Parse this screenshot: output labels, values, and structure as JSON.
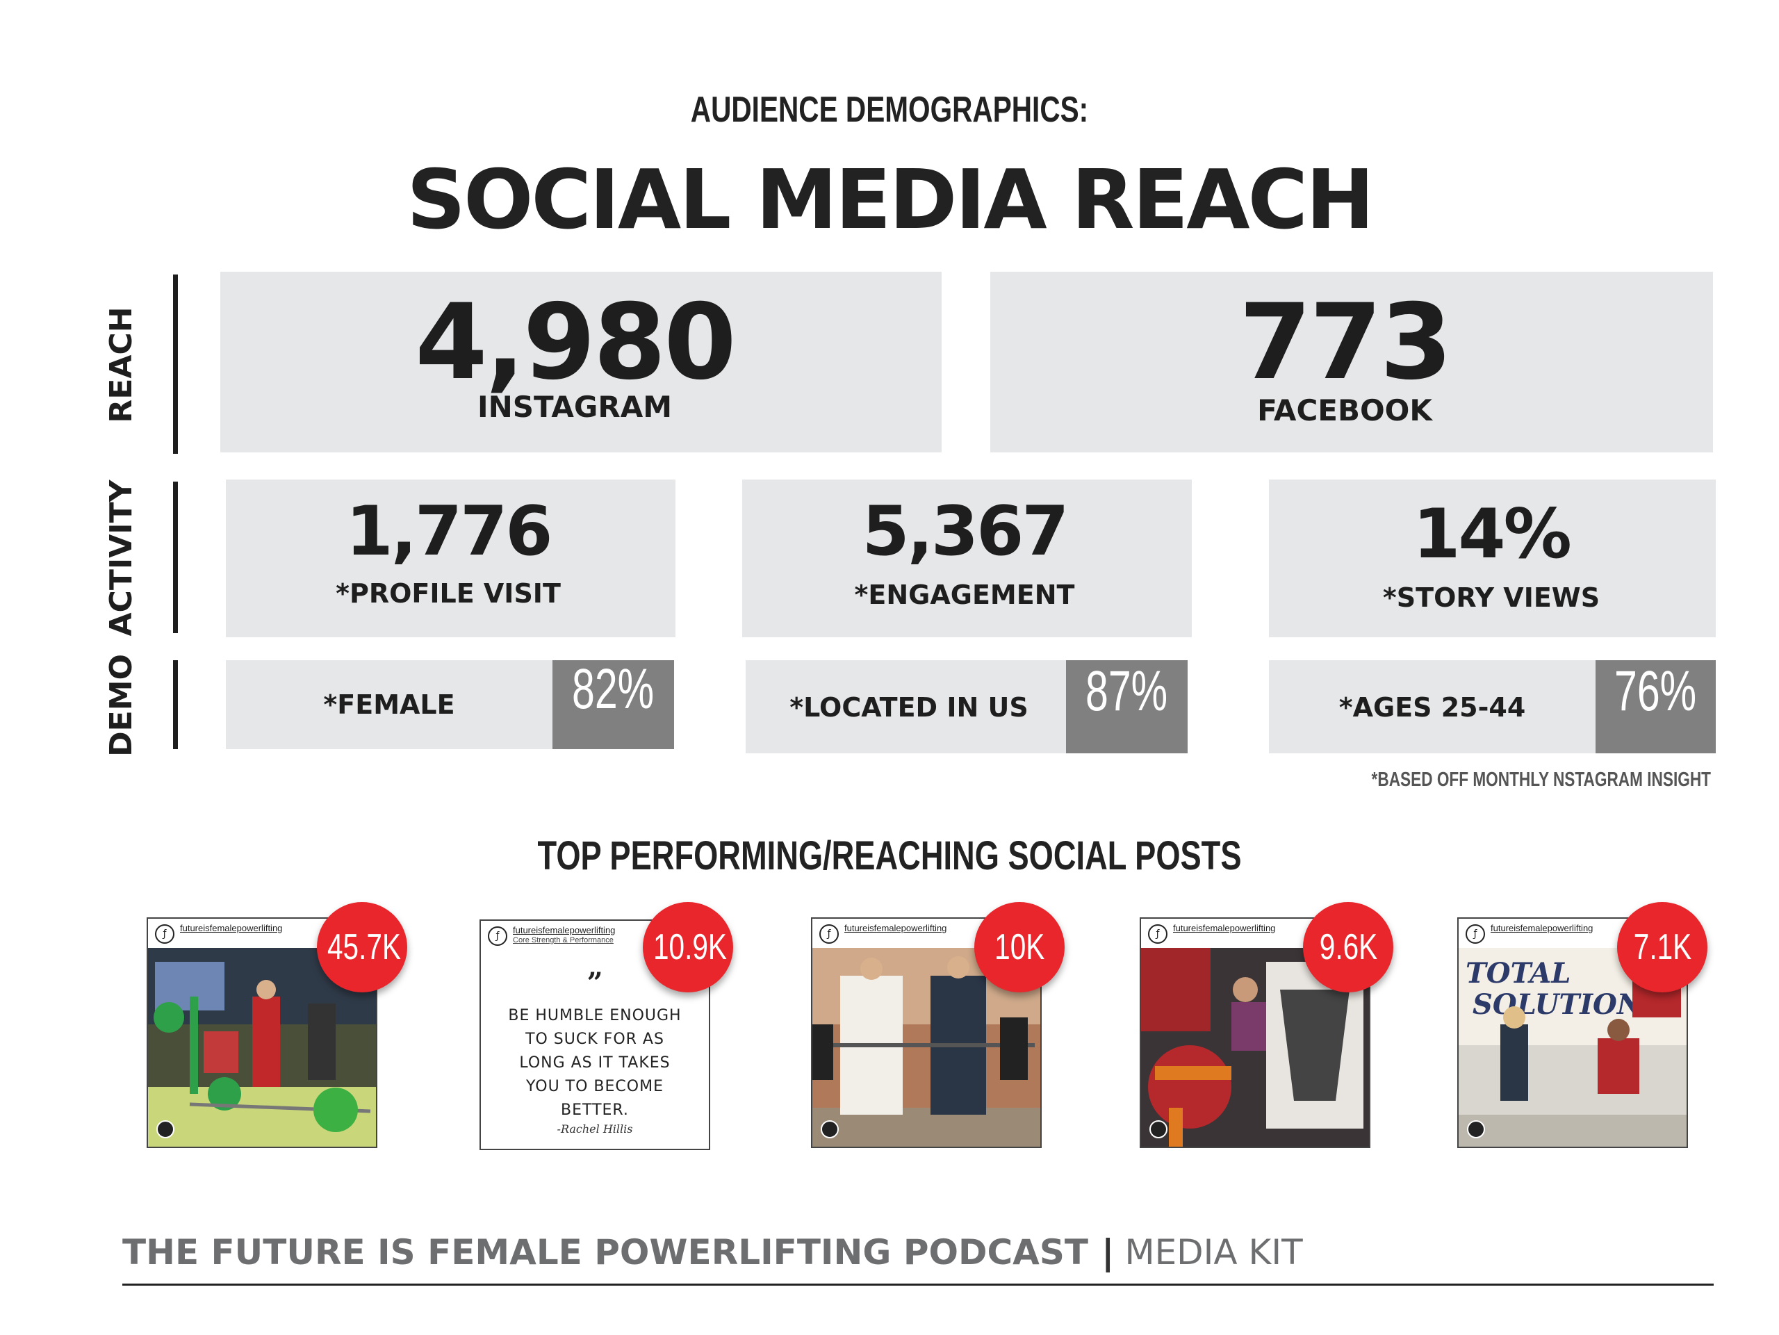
{
  "header": {
    "eyebrow": "AUDIENCE DEMOGRAPHICS:",
    "title": "SOCIAL MEDIA REACH"
  },
  "sections": {
    "reach_label": "REACH",
    "activity_label": "ACTIVITY",
    "demo_label": "DEMO"
  },
  "reach": [
    {
      "value": "4,980",
      "label": "INSTAGRAM"
    },
    {
      "value": "773",
      "label": "FACEBOOK"
    }
  ],
  "activity": [
    {
      "value": "1,776",
      "label": "*PROFILE VISIT"
    },
    {
      "value": "5,367",
      "label": "*ENGAGEMENT"
    },
    {
      "value": "14%",
      "label": "*STORY VIEWS"
    }
  ],
  "demo": [
    {
      "label": "*FEMALE",
      "percent": "82%"
    },
    {
      "label": "*LOCATED IN US",
      "percent": "87%"
    },
    {
      "label": "*AGES 25-44",
      "percent": "76%"
    }
  ],
  "footnote": "*BASED OFF MONTHLY NSTAGRAM INSIGHT",
  "posts_section": {
    "title": "TOP PERFORMING/REACHING SOCIAL POSTS",
    "posts": [
      {
        "handle": "futureisfemalepowerlifting",
        "subtitle": "",
        "count": "45.7K"
      },
      {
        "handle": "futureisfemalepowerlifting",
        "subtitle": "Core Strength & Performance",
        "count": "10.9K",
        "quote_mark": "”",
        "quote": "BE HUMBLE ENOUGH TO SUCK FOR AS LONG AS IT TAKES YOU TO BECOME BETTER.",
        "signature": "-Rachel Hillis"
      },
      {
        "handle": "futureisfemalepowerlifting",
        "subtitle": "",
        "count": "10K"
      },
      {
        "handle": "futureisfemalepowerlifting",
        "subtitle": "",
        "count": "9.6K"
      },
      {
        "handle": "futureisfemalepowerlifting",
        "subtitle": "",
        "count": "7.1K"
      }
    ]
  },
  "footer": {
    "brand": "THE FUTURE IS FEMALE POWERLIFTING PODCAST",
    "separator": "|",
    "doc_type": "MEDIA KIT"
  },
  "colors": {
    "card_bg": "#e6e7e8",
    "percent_bg": "#808080",
    "badge_red": "#e8262b",
    "text_dark": "#1e1e1e",
    "footer_gray": "#6d6e70"
  }
}
